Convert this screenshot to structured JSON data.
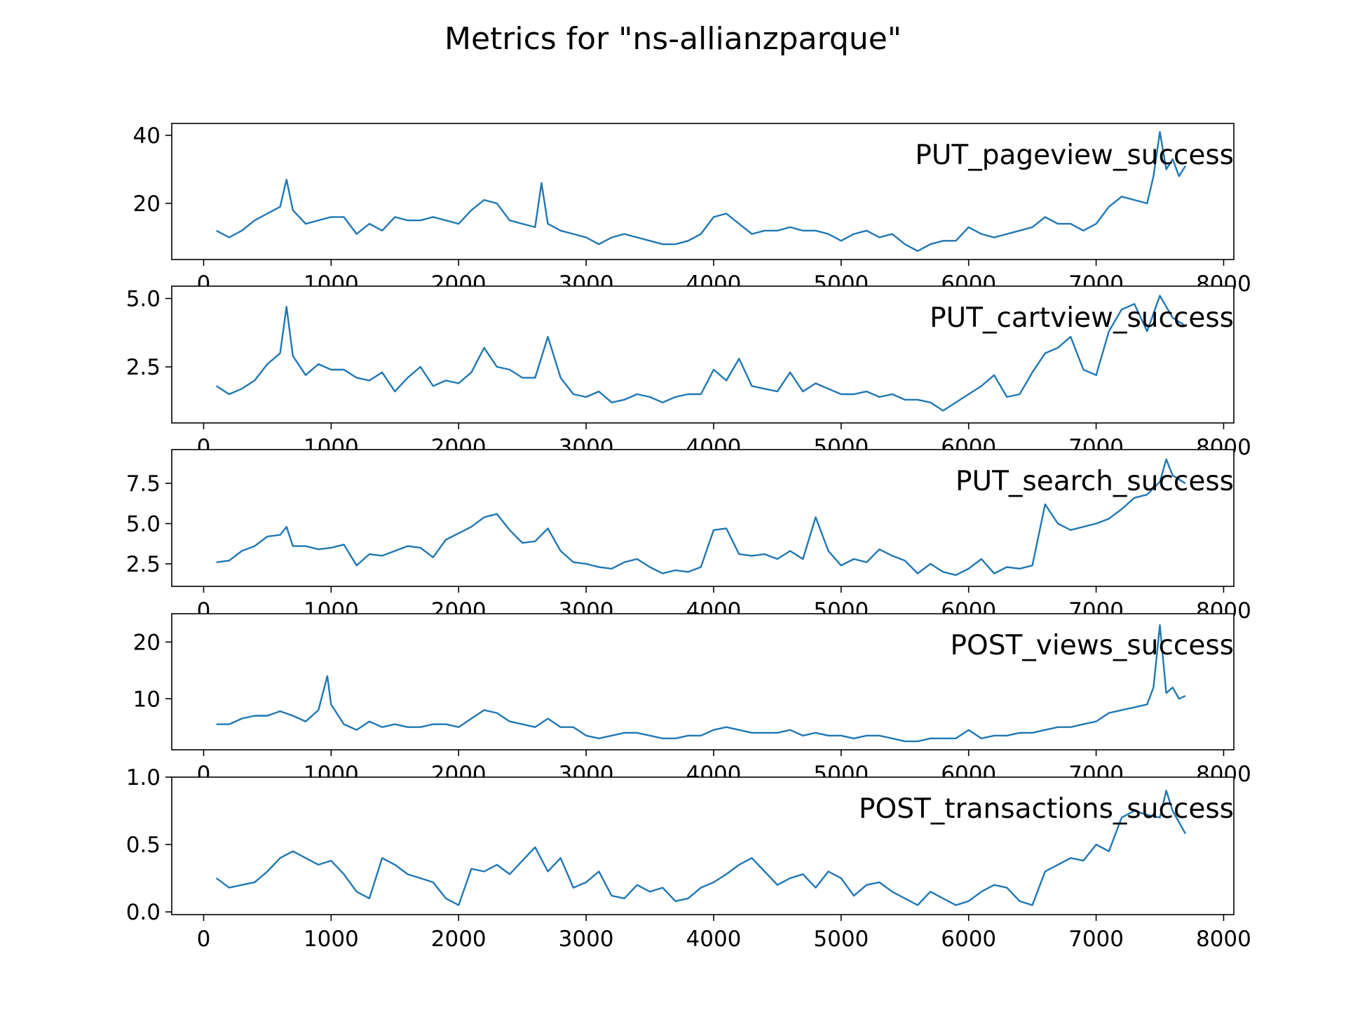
{
  "title": "Metrics for \"ns-allianzparque\"",
  "line_color": "#1f77b4",
  "chart_data": [
    {
      "type": "line",
      "label": "PUT_pageview_success",
      "xlim": [
        -250,
        8080
      ],
      "ylim": [
        3.5,
        43.5
      ],
      "xticks": [
        0,
        1000,
        2000,
        3000,
        4000,
        5000,
        6000,
        7000,
        8000
      ],
      "yticks": [
        20,
        40
      ],
      "grid": false,
      "x": [
        100,
        200,
        300,
        400,
        500,
        600,
        650,
        700,
        800,
        900,
        1000,
        1100,
        1200,
        1300,
        1400,
        1500,
        1600,
        1700,
        1800,
        1900,
        2000,
        2100,
        2200,
        2300,
        2400,
        2500,
        2600,
        2650,
        2700,
        2800,
        2900,
        3000,
        3100,
        3200,
        3300,
        3400,
        3500,
        3600,
        3700,
        3800,
        3900,
        4000,
        4100,
        4200,
        4300,
        4400,
        4500,
        4600,
        4700,
        4800,
        4900,
        5000,
        5100,
        5200,
        5300,
        5400,
        5500,
        5600,
        5700,
        5800,
        5900,
        6000,
        6100,
        6200,
        6300,
        6400,
        6500,
        6600,
        6700,
        6800,
        6900,
        7000,
        7100,
        7200,
        7300,
        7400,
        7450,
        7500,
        7550,
        7600,
        7650,
        7700
      ],
      "y": [
        12,
        10,
        12,
        15,
        17,
        19,
        27,
        18,
        14,
        15,
        16,
        16,
        11,
        14,
        12,
        16,
        15,
        15,
        16,
        15,
        14,
        18,
        21,
        20,
        15,
        14,
        13,
        26,
        14,
        12,
        11,
        10,
        8,
        10,
        11,
        10,
        9,
        8,
        8,
        9,
        11,
        16,
        17,
        14,
        11,
        12,
        12,
        13,
        12,
        12,
        11,
        9,
        11,
        12,
        10,
        11,
        8,
        6,
        8,
        9,
        9,
        13,
        11,
        10,
        11,
        12,
        13,
        16,
        14,
        14,
        12,
        14,
        19,
        22,
        21,
        20,
        28,
        41,
        30,
        33,
        28,
        31
      ]
    },
    {
      "type": "line",
      "label": "PUT_cartview_success",
      "xlim": [
        -250,
        8080
      ],
      "ylim": [
        0.45,
        5.45
      ],
      "xticks": [
        0,
        1000,
        2000,
        3000,
        4000,
        5000,
        6000,
        7000,
        8000
      ],
      "yticks": [
        2.5,
        5.0
      ],
      "grid": false,
      "x": [
        100,
        200,
        300,
        400,
        500,
        600,
        650,
        700,
        800,
        900,
        1000,
        1100,
        1200,
        1300,
        1400,
        1500,
        1600,
        1700,
        1800,
        1900,
        2000,
        2100,
        2200,
        2300,
        2400,
        2500,
        2600,
        2700,
        2800,
        2900,
        3000,
        3100,
        3200,
        3300,
        3400,
        3500,
        3600,
        3700,
        3800,
        3900,
        4000,
        4100,
        4200,
        4300,
        4400,
        4500,
        4600,
        4700,
        4800,
        4900,
        5000,
        5100,
        5200,
        5300,
        5400,
        5500,
        5600,
        5700,
        5800,
        5900,
        6000,
        6100,
        6200,
        6300,
        6400,
        6500,
        6600,
        6700,
        6800,
        6900,
        7000,
        7100,
        7200,
        7300,
        7400,
        7500,
        7550,
        7600,
        7700
      ],
      "y": [
        1.8,
        1.5,
        1.7,
        2.0,
        2.6,
        3.0,
        4.7,
        2.9,
        2.2,
        2.6,
        2.4,
        2.4,
        2.1,
        2.0,
        2.3,
        1.6,
        2.1,
        2.5,
        1.8,
        2.0,
        1.9,
        2.3,
        3.2,
        2.5,
        2.4,
        2.1,
        2.1,
        3.6,
        2.1,
        1.5,
        1.4,
        1.6,
        1.2,
        1.3,
        1.5,
        1.4,
        1.2,
        1.4,
        1.5,
        1.5,
        2.4,
        2.0,
        2.8,
        1.8,
        1.7,
        1.6,
        2.3,
        1.6,
        1.9,
        1.7,
        1.5,
        1.5,
        1.6,
        1.4,
        1.5,
        1.3,
        1.3,
        1.2,
        0.9,
        1.2,
        1.5,
        1.8,
        2.2,
        1.4,
        1.5,
        2.3,
        3.0,
        3.2,
        3.6,
        2.4,
        2.2,
        3.8,
        4.6,
        4.8,
        3.8,
        5.1,
        4.7,
        4.3,
        4.0
      ]
    },
    {
      "type": "line",
      "label": "PUT_search_success",
      "xlim": [
        -250,
        8080
      ],
      "ylim": [
        1.1,
        9.6
      ],
      "xticks": [
        0,
        1000,
        2000,
        3000,
        4000,
        5000,
        6000,
        7000,
        8000
      ],
      "yticks": [
        2.5,
        5.0,
        7.5
      ],
      "grid": false,
      "x": [
        100,
        200,
        300,
        400,
        500,
        600,
        650,
        700,
        800,
        900,
        1000,
        1100,
        1200,
        1300,
        1400,
        1500,
        1600,
        1700,
        1800,
        1900,
        2000,
        2100,
        2200,
        2300,
        2400,
        2500,
        2600,
        2700,
        2800,
        2900,
        3000,
        3100,
        3200,
        3300,
        3400,
        3500,
        3600,
        3700,
        3800,
        3900,
        4000,
        4100,
        4200,
        4300,
        4400,
        4500,
        4600,
        4700,
        4800,
        4900,
        5000,
        5100,
        5200,
        5300,
        5400,
        5500,
        5600,
        5700,
        5800,
        5900,
        6000,
        6100,
        6200,
        6300,
        6400,
        6500,
        6600,
        6700,
        6800,
        6900,
        7000,
        7100,
        7200,
        7300,
        7400,
        7500,
        7550,
        7600,
        7700
      ],
      "y": [
        2.6,
        2.7,
        3.3,
        3.6,
        4.2,
        4.3,
        4.8,
        3.6,
        3.6,
        3.4,
        3.5,
        3.7,
        2.4,
        3.1,
        3.0,
        3.3,
        3.6,
        3.5,
        2.9,
        4.0,
        4.4,
        4.8,
        5.4,
        5.6,
        4.6,
        3.8,
        3.9,
        4.7,
        3.3,
        2.6,
        2.5,
        2.3,
        2.2,
        2.6,
        2.8,
        2.3,
        1.9,
        2.1,
        2.0,
        2.3,
        4.6,
        4.7,
        3.1,
        3.0,
        3.1,
        2.8,
        3.3,
        2.8,
        5.4,
        3.3,
        2.4,
        2.8,
        2.6,
        3.4,
        3.0,
        2.7,
        1.9,
        2.5,
        2.0,
        1.8,
        2.2,
        2.8,
        1.9,
        2.3,
        2.2,
        2.4,
        6.2,
        5.0,
        4.6,
        4.8,
        5.0,
        5.3,
        5.9,
        6.6,
        6.8,
        7.6,
        9.0,
        8.0,
        7.5
      ]
    },
    {
      "type": "line",
      "label": "POST_views_success",
      "xlim": [
        -250,
        8080
      ],
      "ylim": [
        1.0,
        25.0
      ],
      "xticks": [
        0,
        1000,
        2000,
        3000,
        4000,
        5000,
        6000,
        7000,
        8000
      ],
      "yticks": [
        10,
        20
      ],
      "grid": false,
      "x": [
        100,
        200,
        300,
        400,
        500,
        600,
        700,
        800,
        900,
        970,
        1000,
        1100,
        1200,
        1300,
        1400,
        1500,
        1600,
        1700,
        1800,
        1900,
        2000,
        2100,
        2200,
        2300,
        2400,
        2500,
        2600,
        2700,
        2800,
        2900,
        3000,
        3100,
        3200,
        3300,
        3400,
        3500,
        3600,
        3700,
        3800,
        3900,
        4000,
        4100,
        4200,
        4300,
        4400,
        4500,
        4600,
        4700,
        4800,
        4900,
        5000,
        5100,
        5200,
        5300,
        5400,
        5500,
        5600,
        5700,
        5800,
        5900,
        6000,
        6100,
        6200,
        6300,
        6400,
        6500,
        6600,
        6700,
        6800,
        6900,
        7000,
        7100,
        7200,
        7300,
        7400,
        7450,
        7500,
        7550,
        7600,
        7650,
        7700
      ],
      "y": [
        5.5,
        5.5,
        6.5,
        7.0,
        7.0,
        7.8,
        7.0,
        6.0,
        8.0,
        14.0,
        9.0,
        5.5,
        4.5,
        6.0,
        5.0,
        5.5,
        5.0,
        5.0,
        5.5,
        5.5,
        5.0,
        6.5,
        8.0,
        7.5,
        6.0,
        5.5,
        5.0,
        6.5,
        5.0,
        5.0,
        3.5,
        3.0,
        3.5,
        4.0,
        4.0,
        3.5,
        3.0,
        3.0,
        3.5,
        3.5,
        4.5,
        5.0,
        4.5,
        4.0,
        4.0,
        4.0,
        4.5,
        3.5,
        4.0,
        3.5,
        3.5,
        3.0,
        3.5,
        3.5,
        3.0,
        2.5,
        2.5,
        3.0,
        3.0,
        3.0,
        4.5,
        3.0,
        3.5,
        3.5,
        4.0,
        4.0,
        4.5,
        5.0,
        5.0,
        5.5,
        6.0,
        7.5,
        8.0,
        8.5,
        9.0,
        12.0,
        23.0,
        11.0,
        12.0,
        10.0,
        10.5
      ]
    },
    {
      "type": "line",
      "label": "POST_transactions_success",
      "xlim": [
        -250,
        8080
      ],
      "ylim": [
        -0.02,
        1.0
      ],
      "xticks": [
        0,
        1000,
        2000,
        3000,
        4000,
        5000,
        6000,
        7000,
        8000
      ],
      "yticks": [
        0.0,
        0.5,
        1.0
      ],
      "grid": false,
      "x": [
        100,
        200,
        300,
        400,
        500,
        600,
        700,
        800,
        900,
        1000,
        1100,
        1200,
        1300,
        1400,
        1500,
        1600,
        1700,
        1800,
        1900,
        2000,
        2100,
        2200,
        2300,
        2400,
        2500,
        2600,
        2700,
        2800,
        2900,
        3000,
        3100,
        3200,
        3300,
        3400,
        3500,
        3600,
        3700,
        3800,
        3900,
        4000,
        4100,
        4200,
        4300,
        4400,
        4500,
        4600,
        4700,
        4800,
        4900,
        5000,
        5100,
        5200,
        5300,
        5400,
        5500,
        5600,
        5700,
        5800,
        5900,
        6000,
        6100,
        6200,
        6300,
        6400,
        6500,
        6600,
        6700,
        6800,
        6900,
        7000,
        7100,
        7200,
        7300,
        7400,
        7500,
        7550,
        7600,
        7700
      ],
      "y": [
        0.25,
        0.18,
        0.2,
        0.22,
        0.3,
        0.4,
        0.45,
        0.4,
        0.35,
        0.38,
        0.28,
        0.15,
        0.1,
        0.4,
        0.35,
        0.28,
        0.25,
        0.22,
        0.1,
        0.05,
        0.32,
        0.3,
        0.35,
        0.28,
        0.38,
        0.48,
        0.3,
        0.4,
        0.18,
        0.22,
        0.3,
        0.12,
        0.1,
        0.2,
        0.15,
        0.18,
        0.08,
        0.1,
        0.18,
        0.22,
        0.28,
        0.35,
        0.4,
        0.3,
        0.2,
        0.25,
        0.28,
        0.18,
        0.3,
        0.25,
        0.12,
        0.2,
        0.22,
        0.15,
        0.1,
        0.05,
        0.15,
        0.1,
        0.05,
        0.08,
        0.15,
        0.2,
        0.18,
        0.08,
        0.05,
        0.3,
        0.35,
        0.4,
        0.38,
        0.5,
        0.45,
        0.7,
        0.75,
        0.72,
        0.7,
        0.9,
        0.75,
        0.58
      ]
    }
  ]
}
